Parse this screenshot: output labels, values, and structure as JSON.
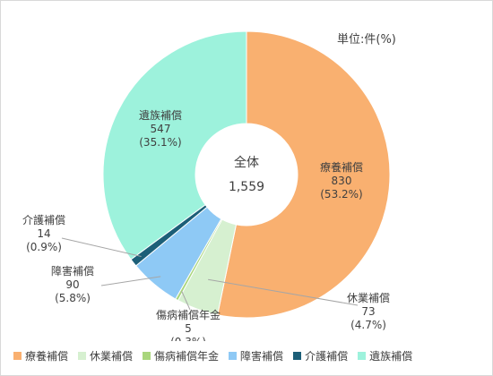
{
  "chart_data": {
    "type": "pie",
    "unit_label": "単位:件(%)",
    "total_label": "全体",
    "total_value": "1,559",
    "slices": [
      {
        "name": "療養補償",
        "value": 830,
        "value_label": "830",
        "percent_label": "(53.2%)",
        "color": "#f9b070"
      },
      {
        "name": "休業補償",
        "value": 73,
        "value_label": "73",
        "percent_label": "(4.7%)",
        "color": "#d6f0d0"
      },
      {
        "name": "傷病補償年金",
        "value": 5,
        "value_label": "5",
        "percent_label": "(0.3%)",
        "color": "#a9d67c"
      },
      {
        "name": "障害補償",
        "value": 90,
        "value_label": "90",
        "percent_label": "(5.8%)",
        "color": "#8ec9f5"
      },
      {
        "name": "介護補償",
        "value": 14,
        "value_label": "14",
        "percent_label": "(0.9%)",
        "color": "#1c5f78"
      },
      {
        "name": "遺族補償",
        "value": 547,
        "value_label": "547",
        "percent_label": "(35.1%)",
        "color": "#9df2dc"
      }
    ],
    "legend_position": "bottom"
  }
}
